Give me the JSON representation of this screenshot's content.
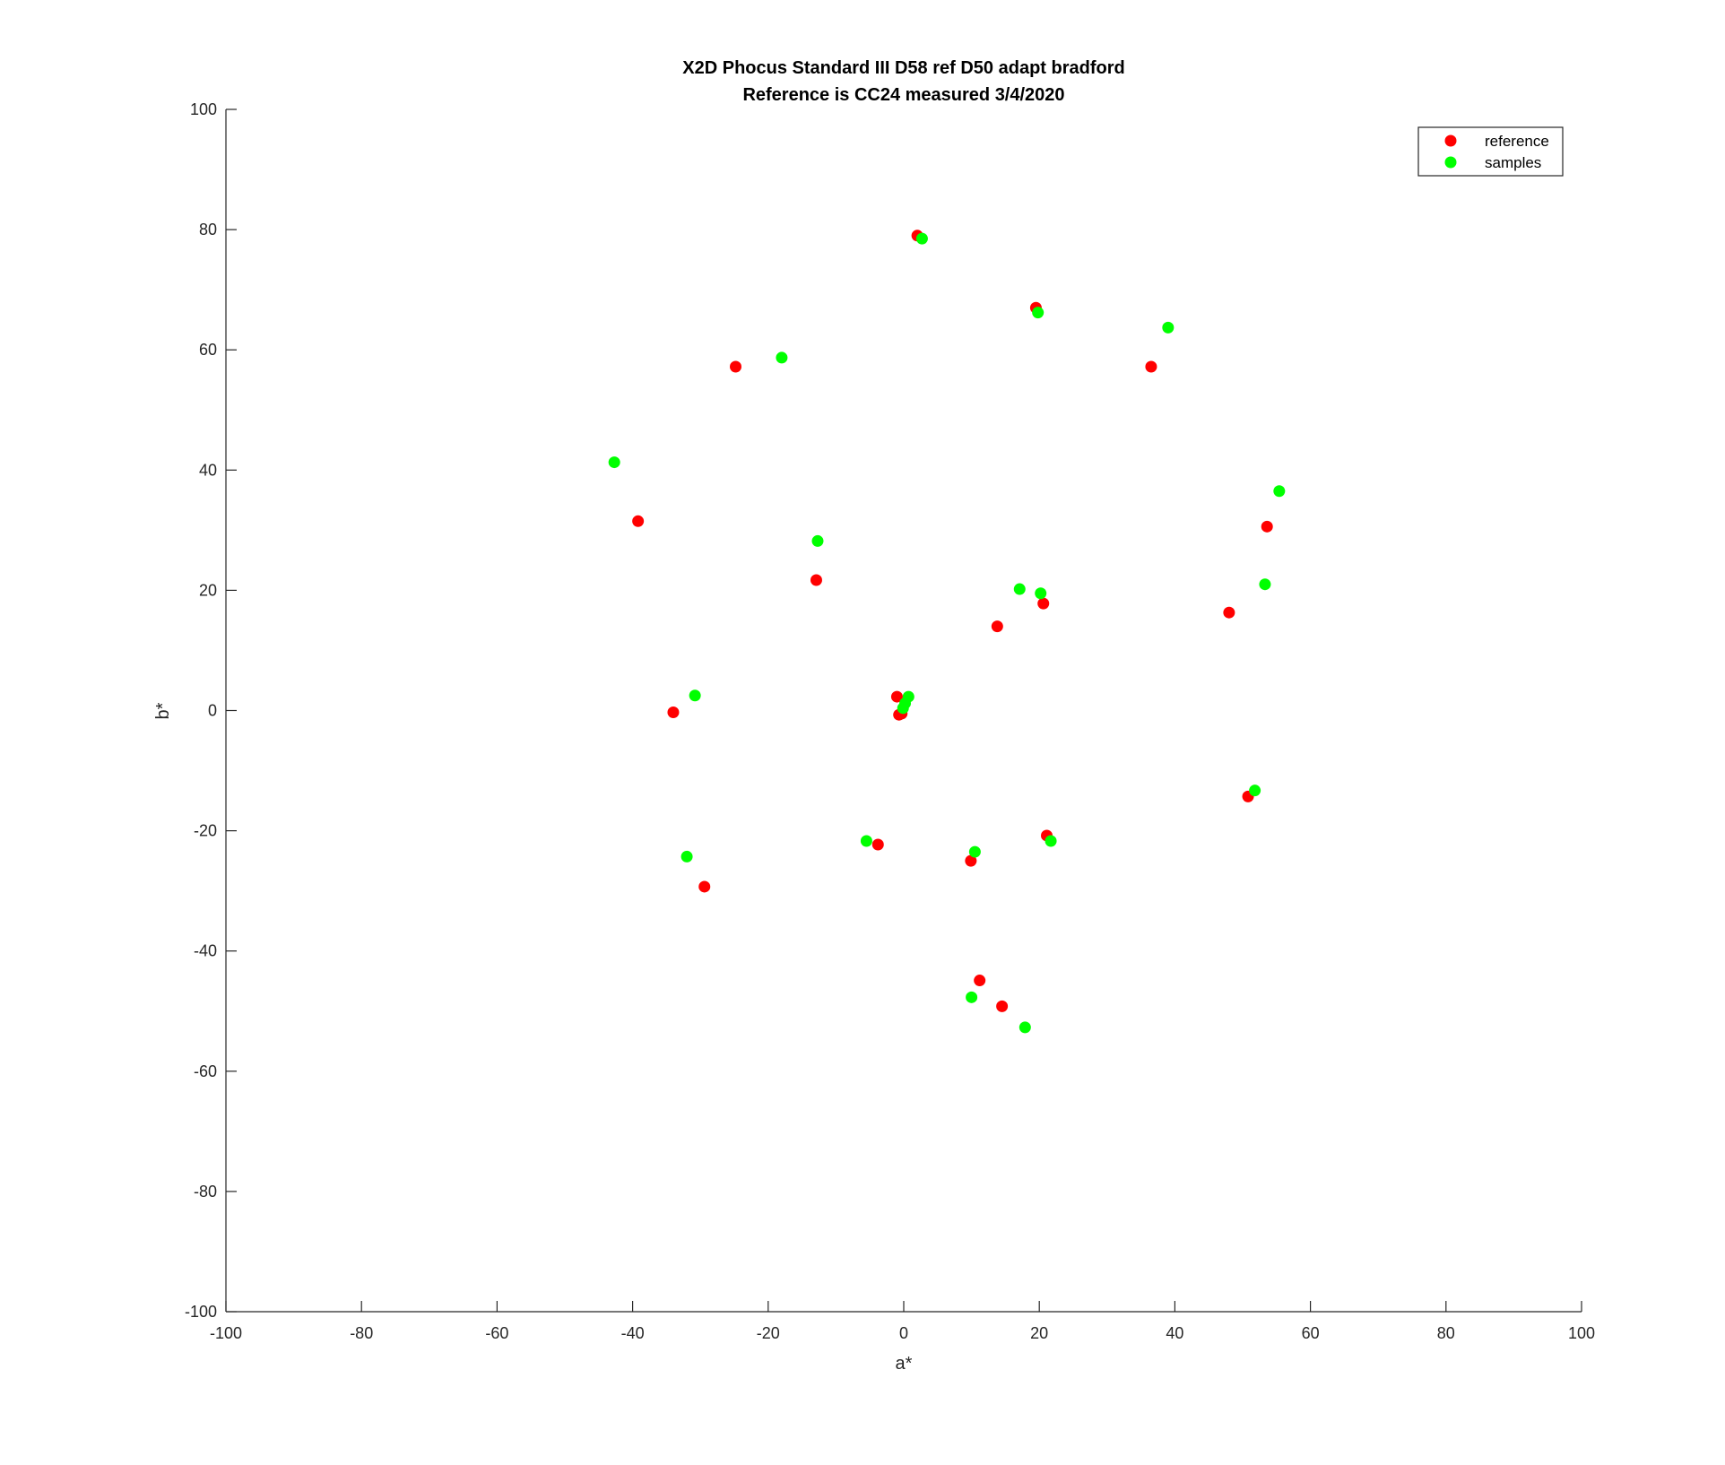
{
  "chart_data": {
    "type": "scatter",
    "title": "X2D Phocus Standard III D58 ref D50 adapt bradford",
    "subtitle": "Reference is CC24 measured 3/4/2020",
    "xlabel": "a*",
    "ylabel": "b*",
    "xlim": [
      -100,
      100
    ],
    "ylim": [
      -100,
      100
    ],
    "xticks": [
      -100,
      -80,
      -60,
      -40,
      -20,
      0,
      20,
      40,
      60,
      80,
      100
    ],
    "yticks": [
      -100,
      -80,
      -60,
      -40,
      -20,
      0,
      20,
      40,
      60,
      80,
      100
    ],
    "grid": false,
    "legend_position": "top-right",
    "series": [
      {
        "name": "reference",
        "color": "#ff0000",
        "points": [
          [
            2,
            79
          ],
          [
            19.5,
            67
          ],
          [
            -24.8,
            57.2
          ],
          [
            36.5,
            57.2
          ],
          [
            -39.2,
            31.5
          ],
          [
            53.6,
            30.6
          ],
          [
            -12.9,
            21.7
          ],
          [
            20.6,
            17.8
          ],
          [
            48,
            16.3
          ],
          [
            13.8,
            14
          ],
          [
            -1,
            2.3
          ],
          [
            -0.7,
            -0.7
          ],
          [
            -0.3,
            -0.5
          ],
          [
            -34,
            -0.3
          ],
          [
            50.8,
            -14.3
          ],
          [
            21.1,
            -20.8
          ],
          [
            -3.8,
            -22.3
          ],
          [
            9.9,
            -25
          ],
          [
            -29.4,
            -29.3
          ],
          [
            11.2,
            -44.9
          ],
          [
            14.5,
            -49.2
          ]
        ]
      },
      {
        "name": "samples",
        "color": "#00ff00",
        "points": [
          [
            2.7,
            78.5
          ],
          [
            19.8,
            66.2
          ],
          [
            39,
            63.7
          ],
          [
            -18,
            58.7
          ],
          [
            -42.7,
            41.3
          ],
          [
            55.4,
            36.5
          ],
          [
            -12.7,
            28.2
          ],
          [
            17.1,
            20.2
          ],
          [
            20.2,
            19.5
          ],
          [
            53.3,
            21
          ],
          [
            -30.8,
            2.5
          ],
          [
            0.7,
            2.3
          ],
          [
            0.2,
            1.2
          ],
          [
            -0.1,
            0.4
          ],
          [
            51.8,
            -13.3
          ],
          [
            -32,
            -24.3
          ],
          [
            -5.5,
            -21.7
          ],
          [
            10.5,
            -23.5
          ],
          [
            21.7,
            -21.7
          ],
          [
            10,
            -47.7
          ],
          [
            17.9,
            -52.7
          ]
        ]
      }
    ]
  }
}
